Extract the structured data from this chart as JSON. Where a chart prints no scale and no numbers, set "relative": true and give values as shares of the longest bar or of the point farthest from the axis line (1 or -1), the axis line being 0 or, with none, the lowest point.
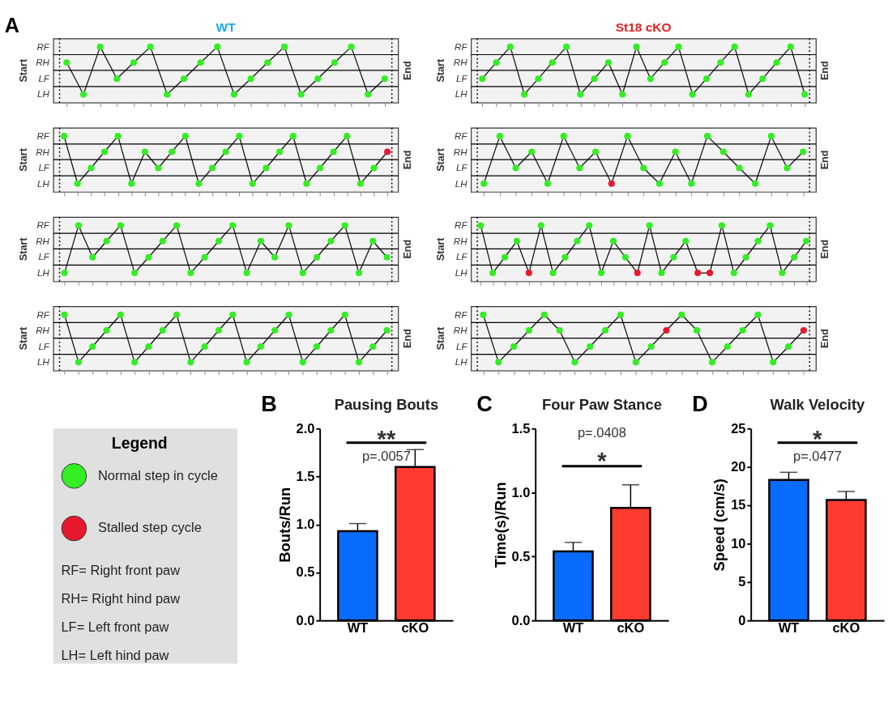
{
  "chart_data": [
    {
      "type": "line",
      "relative": true,
      "title": "WT",
      "annotations": [
        "A",
        "RF",
        "RH",
        "LF",
        "LH",
        "Start",
        "End"
      ],
      "marker": "circle",
      "line_style": "solid",
      "categories": [
        null,
        null,
        null,
        null,
        null,
        null,
        null,
        null,
        null,
        null,
        null,
        null,
        null,
        null,
        null,
        null,
        null,
        null,
        null,
        null
      ],
      "ref_lines": [
        {
          "axis": "y",
          "value": 0.86
        },
        {
          "axis": "y",
          "value": 0.58
        },
        {
          "axis": "y",
          "value": 0.29
        }
      ],
      "series": [
        {
          "color": "#111111",
          "values": [
            0.72,
            0.15,
            1,
            0.43,
            0.72,
            1,
            0.15,
            0.43,
            0.72,
            1,
            0.15,
            0.43,
            0.72,
            1,
            0.15,
            0.43,
            0.72,
            1,
            0.15,
            0.43
          ],
          "colors": [
            "#33ee22",
            "#33ee22",
            "#33ee22",
            "#33ee22",
            "#33ee22",
            "#33ee22",
            "#33ee22",
            "#33ee22",
            "#33ee22",
            "#33ee22",
            "#33ee22",
            "#33ee22",
            "#33ee22",
            "#33ee22",
            "#33ee22",
            "#33ee22",
            "#33ee22",
            "#33ee22",
            "#33ee22",
            "#33ee22"
          ]
        }
      ]
    },
    {
      "type": "line",
      "relative": true,
      "title": "St18 cKO",
      "annotations": [
        "RF",
        "RH",
        "LF",
        "LH",
        "Start",
        "End"
      ],
      "marker": "circle",
      "line_style": "solid",
      "categories": [
        null,
        null,
        null,
        null,
        null,
        null,
        null,
        null,
        null,
        null,
        null,
        null,
        null,
        null,
        null,
        null,
        null,
        null,
        null,
        null,
        null,
        null,
        null,
        null
      ],
      "ref_lines": [
        {
          "axis": "y",
          "value": 0.86
        },
        {
          "axis": "y",
          "value": 0.58
        },
        {
          "axis": "y",
          "value": 0.29
        }
      ],
      "series": [
        {
          "color": "#111111",
          "values": [
            0.43,
            0.72,
            1,
            0.15,
            0.43,
            0.72,
            1,
            0.15,
            0.43,
            0.72,
            0.15,
            1,
            0.43,
            0.72,
            1,
            0.15,
            0.43,
            0.72,
            1,
            0.15,
            0.43,
            0.72,
            1,
            0.15
          ],
          "colors": [
            "#33ee22",
            "#33ee22",
            "#33ee22",
            "#33ee22",
            "#33ee22",
            "#33ee22",
            "#33ee22",
            "#33ee22",
            "#33ee22",
            "#33ee22",
            "#33ee22",
            "#33ee22",
            "#33ee22",
            "#33ee22",
            "#33ee22",
            "#33ee22",
            "#33ee22",
            "#33ee22",
            "#33ee22",
            "#33ee22",
            "#33ee22",
            "#33ee22",
            "#33ee22",
            "#33ee22"
          ]
        }
      ]
    },
    {
      "type": "line",
      "relative": true,
      "annotations": [
        "RF",
        "RH",
        "LF",
        "LH",
        "Start",
        "End"
      ],
      "marker": "circle",
      "line_style": "solid",
      "categories": [
        null,
        null,
        null,
        null,
        null,
        null,
        null,
        null,
        null,
        null,
        null,
        null,
        null,
        null,
        null,
        null,
        null,
        null,
        null,
        null,
        null,
        null,
        null,
        null,
        null
      ],
      "ref_lines": [
        {
          "axis": "y",
          "value": 0.86
        },
        {
          "axis": "y",
          "value": 0.58
        },
        {
          "axis": "y",
          "value": 0.29
        }
      ],
      "series": [
        {
          "color": "#111111",
          "values": [
            1,
            0.15,
            0.43,
            0.72,
            1,
            0.15,
            0.72,
            0.43,
            0.72,
            1,
            0.15,
            0.43,
            0.72,
            1,
            0.15,
            0.43,
            0.72,
            1,
            0.15,
            0.43,
            0.72,
            1,
            0.15,
            0.43,
            0.72
          ],
          "colors": [
            "#33ee22",
            "#33ee22",
            "#33ee22",
            "#33ee22",
            "#33ee22",
            "#33ee22",
            "#33ee22",
            "#33ee22",
            "#33ee22",
            "#33ee22",
            "#33ee22",
            "#33ee22",
            "#33ee22",
            "#33ee22",
            "#33ee22",
            "#33ee22",
            "#33ee22",
            "#33ee22",
            "#33ee22",
            "#33ee22",
            "#33ee22",
            "#33ee22",
            "#33ee22",
            "#33ee22",
            "#e8192c"
          ]
        }
      ]
    },
    {
      "type": "line",
      "relative": true,
      "annotations": [
        "RF",
        "RH",
        "LF",
        "LH",
        "Start",
        "End"
      ],
      "marker": "circle",
      "line_style": "solid",
      "categories": [
        null,
        null,
        null,
        null,
        null,
        null,
        null,
        null,
        null,
        null,
        null,
        null,
        null,
        null,
        null,
        null,
        null,
        null,
        null,
        null,
        null
      ],
      "ref_lines": [
        {
          "axis": "y",
          "value": 0.86
        },
        {
          "axis": "y",
          "value": 0.58
        },
        {
          "axis": "y",
          "value": 0.29
        }
      ],
      "series": [
        {
          "color": "#111111",
          "values": [
            0.15,
            1,
            0.43,
            0.72,
            0.15,
            1,
            0.43,
            0.72,
            0.15,
            1,
            0.43,
            0.15,
            0.72,
            0.15,
            1,
            0.72,
            0.43,
            0.15,
            1,
            0.43,
            0.72
          ],
          "colors": [
            "#33ee22",
            "#33ee22",
            "#33ee22",
            "#33ee22",
            "#33ee22",
            "#33ee22",
            "#33ee22",
            "#33ee22",
            "#e8192c",
            "#33ee22",
            "#33ee22",
            "#33ee22",
            "#33ee22",
            "#33ee22",
            "#33ee22",
            "#33ee22",
            "#33ee22",
            "#33ee22",
            "#33ee22",
            "#33ee22",
            "#33ee22"
          ]
        }
      ]
    },
    {
      "type": "line",
      "relative": true,
      "annotations": [
        "RF",
        "RH",
        "LF",
        "LH",
        "Start",
        "End"
      ],
      "marker": "circle",
      "line_style": "solid",
      "categories": [
        null,
        null,
        null,
        null,
        null,
        null,
        null,
        null,
        null,
        null,
        null,
        null,
        null,
        null,
        null,
        null,
        null,
        null,
        null,
        null,
        null,
        null,
        null,
        null
      ],
      "ref_lines": [
        {
          "axis": "y",
          "value": 0.86
        },
        {
          "axis": "y",
          "value": 0.58
        },
        {
          "axis": "y",
          "value": 0.29
        }
      ],
      "series": [
        {
          "color": "#111111",
          "values": [
            0.15,
            1,
            0.43,
            0.72,
            1,
            0.15,
            0.43,
            0.72,
            1,
            0.15,
            0.43,
            0.72,
            1,
            0.15,
            0.72,
            0.43,
            1,
            0.15,
            0.43,
            0.72,
            1,
            0.15,
            0.72,
            0.43
          ],
          "colors": [
            "#33ee22",
            "#33ee22",
            "#33ee22",
            "#33ee22",
            "#33ee22",
            "#33ee22",
            "#33ee22",
            "#33ee22",
            "#33ee22",
            "#33ee22",
            "#33ee22",
            "#33ee22",
            "#33ee22",
            "#33ee22",
            "#33ee22",
            "#33ee22",
            "#33ee22",
            "#33ee22",
            "#33ee22",
            "#33ee22",
            "#33ee22",
            "#33ee22",
            "#33ee22",
            "#33ee22"
          ]
        }
      ]
    },
    {
      "type": "line",
      "relative": true,
      "annotations": [
        "RF",
        "RH",
        "LF",
        "LH",
        "Start",
        "End"
      ],
      "marker": "circle",
      "line_style": "solid",
      "categories": [
        null,
        null,
        null,
        null,
        null,
        null,
        null,
        null,
        null,
        null,
        null,
        null,
        null,
        null,
        null,
        null,
        null,
        null,
        null,
        null,
        null,
        null,
        null,
        null,
        null,
        null,
        null,
        null
      ],
      "ref_lines": [
        {
          "axis": "y",
          "value": 0.86
        },
        {
          "axis": "y",
          "value": 0.58
        },
        {
          "axis": "y",
          "value": 0.29
        }
      ],
      "series": [
        {
          "color": "#111111",
          "values": [
            1,
            0.15,
            0.43,
            0.72,
            0.15,
            1,
            0.15,
            0.43,
            0.72,
            1,
            0.15,
            0.72,
            0.43,
            0.15,
            1,
            0.15,
            0.43,
            0.72,
            0.15,
            0.15,
            1,
            0.15,
            0.43,
            0.72,
            1,
            0.15,
            0.43,
            0.72
          ],
          "colors": [
            "#33ee22",
            "#33ee22",
            "#33ee22",
            "#33ee22",
            "#e8192c",
            "#33ee22",
            "#33ee22",
            "#33ee22",
            "#33ee22",
            "#33ee22",
            "#33ee22",
            "#33ee22",
            "#33ee22",
            "#e8192c",
            "#33ee22",
            "#33ee22",
            "#33ee22",
            "#33ee22",
            "#e8192c",
            "#e8192c",
            "#33ee22",
            "#33ee22",
            "#33ee22",
            "#33ee22",
            "#33ee22",
            "#33ee22",
            "#33ee22",
            "#33ee22"
          ]
        }
      ]
    },
    {
      "type": "line",
      "relative": true,
      "annotations": [
        "RF",
        "RH",
        "LF",
        "LH",
        "Start",
        "End"
      ],
      "marker": "circle",
      "line_style": "solid",
      "categories": [
        null,
        null,
        null,
        null,
        null,
        null,
        null,
        null,
        null,
        null,
        null,
        null,
        null,
        null,
        null,
        null,
        null,
        null,
        null,
        null,
        null,
        null,
        null,
        null
      ],
      "ref_lines": [
        {
          "axis": "y",
          "value": 0.86
        },
        {
          "axis": "y",
          "value": 0.58
        },
        {
          "axis": "y",
          "value": 0.29
        }
      ],
      "series": [
        {
          "color": "#111111",
          "values": [
            1,
            0.15,
            0.43,
            0.72,
            1,
            0.15,
            0.43,
            0.72,
            1,
            0.15,
            0.43,
            0.72,
            1,
            0.15,
            0.43,
            0.72,
            1,
            0.15,
            0.43,
            0.72,
            1,
            0.15,
            0.43,
            0.72
          ],
          "colors": [
            "#33ee22",
            "#33ee22",
            "#33ee22",
            "#33ee22",
            "#33ee22",
            "#33ee22",
            "#33ee22",
            "#33ee22",
            "#33ee22",
            "#33ee22",
            "#33ee22",
            "#33ee22",
            "#33ee22",
            "#33ee22",
            "#33ee22",
            "#33ee22",
            "#33ee22",
            "#33ee22",
            "#33ee22",
            "#33ee22",
            "#33ee22",
            "#33ee22",
            "#33ee22",
            "#33ee22"
          ]
        }
      ]
    },
    {
      "type": "line",
      "relative": true,
      "annotations": [
        "RF",
        "RH",
        "LF",
        "LH",
        "Start",
        "End"
      ],
      "marker": "circle",
      "line_style": "solid",
      "categories": [
        null,
        null,
        null,
        null,
        null,
        null,
        null,
        null,
        null,
        null,
        null,
        null,
        null,
        null,
        null,
        null,
        null,
        null,
        null,
        null,
        null,
        null
      ],
      "ref_lines": [
        {
          "axis": "y",
          "value": 0.86
        },
        {
          "axis": "y",
          "value": 0.58
        },
        {
          "axis": "y",
          "value": 0.29
        }
      ],
      "series": [
        {
          "color": "#111111",
          "values": [
            1,
            0.15,
            0.43,
            0.72,
            1,
            0.72,
            0.15,
            0.43,
            0.72,
            1,
            0.15,
            0.43,
            0.72,
            1,
            0.72,
            0.15,
            0.43,
            0.72,
            1,
            0.15,
            0.43,
            0.72
          ],
          "colors": [
            "#33ee22",
            "#33ee22",
            "#33ee22",
            "#33ee22",
            "#33ee22",
            "#33ee22",
            "#33ee22",
            "#33ee22",
            "#33ee22",
            "#33ee22",
            "#33ee22",
            "#33ee22",
            "#e8192c",
            "#33ee22",
            "#33ee22",
            "#33ee22",
            "#33ee22",
            "#33ee22",
            "#33ee22",
            "#33ee22",
            "#33ee22",
            "#e8192c"
          ]
        }
      ]
    },
    {
      "type": "other",
      "title": "Legend",
      "categories": [
        "Normal step in cycle",
        "Stalled step cycle"
      ],
      "colors": [
        "#33ee22",
        "#e8192c"
      ],
      "annotations": [
        "RF= Right front paw",
        "RH= Right hind paw",
        "LF= Left front paw",
        "LH= Left hind paw"
      ]
    },
    {
      "type": "bar",
      "title": "Pausing Bouts",
      "ylabel": "Bouts/Run",
      "annotations": [
        "B",
        "**",
        "p=.0057"
      ],
      "categories": [
        "WT",
        "cKO"
      ],
      "values": [
        0.93,
        1.6
      ],
      "colors": [
        "#0a6cff",
        "#ff3b30"
      ],
      "errors": [
        [
          0.93,
          1.01
        ],
        [
          1.6,
          1.78
        ]
      ],
      "ylim": [
        0,
        2
      ],
      "yticks": [
        {
          "value": 0,
          "label": "0.0"
        },
        {
          "value": 0.5,
          "label": "0.5"
        },
        {
          "value": 1,
          "label": "1.0"
        },
        {
          "value": 1.5,
          "label": "1.5"
        },
        {
          "value": 2,
          "label": "2.0"
        }
      ]
    },
    {
      "type": "bar",
      "title": "Four Paw Stance",
      "ylabel": "Time(s)/Run",
      "annotations": [
        "C",
        "p=.0408",
        "*"
      ],
      "categories": [
        "WT",
        "cKO"
      ],
      "values": [
        0.54,
        0.88
      ],
      "colors": [
        "#0a6cff",
        "#ff3b30"
      ],
      "errors": [
        [
          0.54,
          0.61
        ],
        [
          0.88,
          1.06
        ]
      ],
      "ylim": [
        0,
        1.5
      ],
      "yticks": [
        {
          "value": 0,
          "label": "0.0"
        },
        {
          "value": 0.5,
          "label": "0.5"
        },
        {
          "value": 1,
          "label": "1.0"
        },
        {
          "value": 1.5,
          "label": "1.5"
        }
      ]
    },
    {
      "type": "bar",
      "title": "Walk Velocity",
      "ylabel": "Speed (cm/s)",
      "annotations": [
        "D",
        "*",
        "p=.0477"
      ],
      "categories": [
        "WT",
        "cKO"
      ],
      "values": [
        18.3,
        15.7
      ],
      "colors": [
        "#0a6cff",
        "#ff3b30"
      ],
      "errors": [
        [
          18.3,
          19.3
        ],
        [
          15.7,
          16.8
        ]
      ],
      "ylim": [
        0,
        25
      ],
      "yticks": [
        0,
        5,
        10,
        15,
        20,
        25
      ]
    }
  ]
}
